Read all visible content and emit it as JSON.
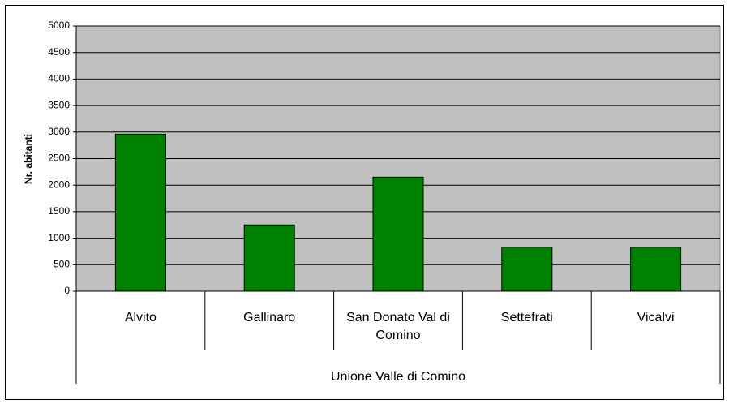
{
  "chart_data": {
    "type": "bar",
    "y_label": "Nr. abitanti",
    "categories": [
      "Alvito",
      "Gallinaro",
      "San Donato Val di Comino",
      "Settefrati",
      "Vicalvi"
    ],
    "category_group": "Unione Valle di Comino",
    "values": [
      2960,
      1250,
      2150,
      830,
      830
    ],
    "color": "#008000",
    "plot_background": "#c0c0c0",
    "ylim": [
      0,
      5000
    ],
    "yticks": [
      0,
      500,
      1000,
      1500,
      2000,
      2500,
      3000,
      3500,
      4000,
      4500,
      5000
    ],
    "grid": true
  }
}
